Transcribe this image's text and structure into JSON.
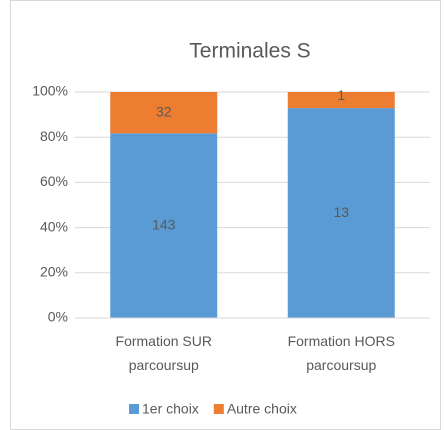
{
  "chart_data": {
    "type": "bar",
    "stacking": "percent",
    "title": "Terminales S",
    "categories": [
      "Formation SUR parcoursup",
      "Formation HORS parcoursup"
    ],
    "series": [
      {
        "name": "1er choix",
        "color": "#5b9bd5",
        "values": [
          143,
          13
        ]
      },
      {
        "name": "Autre choix",
        "color": "#ed7d31",
        "values": [
          32,
          1
        ]
      }
    ],
    "ylim": [
      0,
      100
    ],
    "yticks": [
      {
        "value": 0,
        "label": "0%"
      },
      {
        "value": 20,
        "label": "20%"
      },
      {
        "value": 40,
        "label": "40%"
      },
      {
        "value": 60,
        "label": "60%"
      },
      {
        "value": 80,
        "label": "80%"
      },
      {
        "value": 100,
        "label": "100%"
      }
    ],
    "grid": true,
    "legend": "bottom"
  }
}
